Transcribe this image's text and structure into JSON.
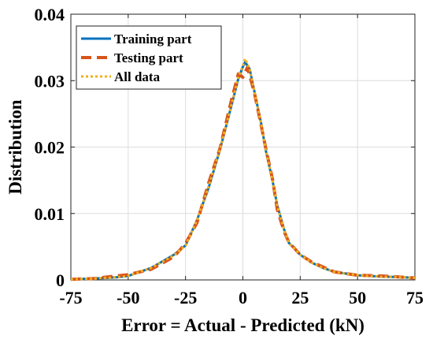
{
  "chart_data": {
    "type": "line",
    "title": "",
    "xlabel": "Error = Actual - Predicted (kN)",
    "ylabel": "Distribution",
    "xlim": [
      -75,
      75
    ],
    "ylim": [
      0,
      0.04
    ],
    "xticks": [
      -75,
      -50,
      -25,
      0,
      25,
      50,
      75
    ],
    "xtick_labels": [
      "-75",
      "-50",
      "-25",
      "0",
      "25",
      "50",
      "75"
    ],
    "yticks": [
      0,
      0.01,
      0.02,
      0.03,
      0.04
    ],
    "ytick_labels": [
      "0",
      "0.01",
      "0.02",
      "0.03",
      "0.04"
    ],
    "grid": true,
    "legend_position": "top-left",
    "series": [
      {
        "name": "Training part",
        "color": "#0072BD",
        "style": "solid",
        "x": [
          -75,
          -65,
          -55,
          -50,
          -40,
          -30,
          -25,
          -20,
          -15,
          -10,
          -5,
          -2,
          0,
          1,
          3,
          5,
          8,
          10,
          13,
          15,
          18,
          20,
          25,
          30,
          35,
          40,
          50,
          60,
          70,
          75
        ],
        "y": [
          0.0001,
          0.0002,
          0.0004,
          0.0006,
          0.0018,
          0.0038,
          0.0052,
          0.009,
          0.0138,
          0.0196,
          0.0262,
          0.0303,
          0.0321,
          0.0328,
          0.0317,
          0.0284,
          0.0235,
          0.0195,
          0.0148,
          0.0112,
          0.0076,
          0.0056,
          0.0038,
          0.0026,
          0.0018,
          0.0012,
          0.0007,
          0.0005,
          0.0004,
          0.0003
        ]
      },
      {
        "name": "Testing part",
        "color": "#D95319",
        "style": "dashed",
        "x": [
          -75,
          -65,
          -55,
          -50,
          -40,
          -30,
          -25,
          -20,
          -15,
          -10,
          -5,
          -2,
          0,
          2,
          5,
          8,
          10,
          13,
          15,
          18,
          20,
          25,
          30,
          40,
          50,
          60,
          70,
          75
        ],
        "y": [
          0.0001,
          0.0002,
          0.0006,
          0.0008,
          0.0016,
          0.0035,
          0.0055,
          0.0086,
          0.0145,
          0.0198,
          0.027,
          0.031,
          0.0305,
          0.032,
          0.0282,
          0.0232,
          0.0198,
          0.015,
          0.0106,
          0.0073,
          0.0057,
          0.0038,
          0.0027,
          0.0012,
          0.0007,
          0.0006,
          0.0004,
          0.0003
        ]
      },
      {
        "name": "All data",
        "color": "#EDB120",
        "style": "dotted",
        "x": [
          -75,
          -65,
          -55,
          -50,
          -40,
          -30,
          -25,
          -20,
          -15,
          -10,
          -5,
          -2,
          0,
          1,
          3,
          5,
          8,
          10,
          13,
          15,
          18,
          20,
          25,
          30,
          35,
          40,
          50,
          60,
          70,
          75
        ],
        "y": [
          0.0001,
          0.0002,
          0.0004,
          0.0006,
          0.0018,
          0.0037,
          0.0052,
          0.009,
          0.014,
          0.0197,
          0.0263,
          0.0305,
          0.0322,
          0.0333,
          0.0317,
          0.0284,
          0.0234,
          0.0196,
          0.0148,
          0.0111,
          0.0076,
          0.0056,
          0.0038,
          0.0026,
          0.0018,
          0.0012,
          0.0007,
          0.0005,
          0.0004,
          0.0003
        ]
      }
    ]
  }
}
